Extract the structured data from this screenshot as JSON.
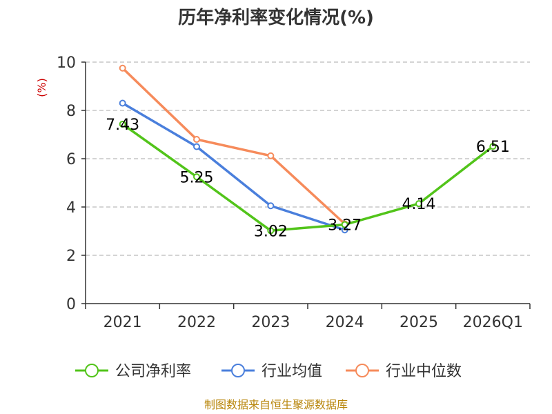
{
  "chart_data": {
    "type": "line",
    "title": "历年净利率变化情况(%)",
    "ylabel": "(%)",
    "ylim": [
      0,
      10
    ],
    "yticks": [
      0,
      2,
      4,
      6,
      8,
      10
    ],
    "grid": true,
    "legend_position": "bottom",
    "categories": [
      "2021",
      "2022",
      "2023",
      "2024",
      "2025",
      "2026Q1"
    ],
    "series": [
      {
        "name": "公司净利率",
        "color": "#52c41a",
        "values": [
          7.43,
          5.25,
          3.02,
          3.27,
          4.14,
          6.51
        ],
        "labels": [
          "7.43",
          "5.25",
          "3.02",
          "3.27",
          "4.14",
          "6.51"
        ]
      },
      {
        "name": "行业均值",
        "color": "#4a7fdc",
        "values": [
          8.3,
          6.5,
          4.05,
          3.05,
          null,
          null
        ]
      },
      {
        "name": "行业中位数",
        "color": "#f68b5b",
        "values": [
          9.75,
          6.8,
          6.12,
          3.3,
          null,
          null
        ]
      }
    ]
  },
  "source_text": "制图数据来自恒生聚源数据库"
}
